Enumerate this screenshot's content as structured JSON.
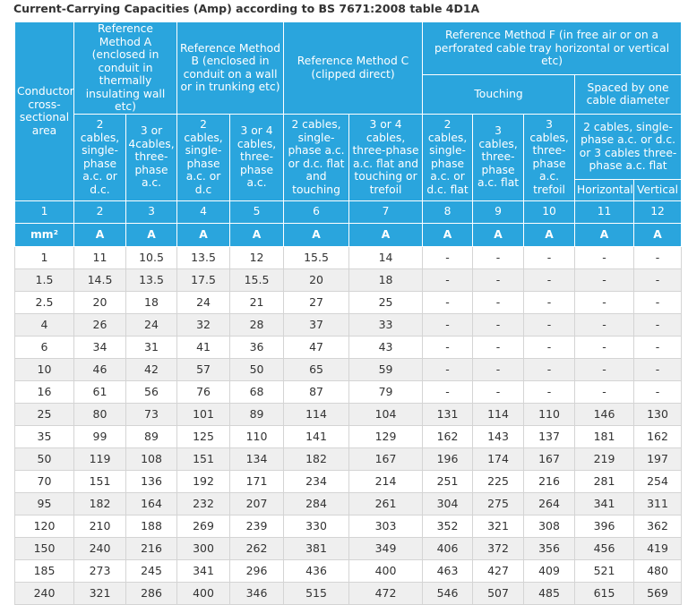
{
  "title": "Current-Carrying Capacities (Amp) according to BS 7671:2008 table 4D1A",
  "header": {
    "conductor": "Conductor cross-sectional area",
    "method_a": "Reference Method A (enclosed in conduit in thermally insulating wall etc)",
    "method_b": "Reference Method B (enclosed in conduit on a wall or in trunking etc)",
    "method_c": "Reference Method C (clipped direct)",
    "method_f": "Reference Method F (in free air or on a perforated cable tray horizontal or vertical etc)",
    "touching": "Touching",
    "spaced": "Spaced by one cable diameter",
    "sub": [
      "2 cables, single-phase a.c. or d.c.",
      "3 or 4cables, three-phase a.c.",
      "2 cables, single-phase a.c. or d.c",
      "3 or 4 cables, three-phase a.c.",
      "2 cables, single-phase a.c. or d.c. flat and touching",
      "3 or 4 cables, three-phase a.c. flat and touching or trefoil",
      "2 cables, single-phase a.c. or d.c. flat",
      "3 cables, three-phase a.c. flat",
      "3 cables, three-phase a.c. trefoil"
    ],
    "spaced_sub": "2 cables, single-phase a.c. or d.c. or 3 cables three-phase a.c. flat",
    "horizontal": "Horizontal",
    "vertical": "Vertical"
  },
  "column_numbers": [
    1,
    2,
    3,
    4,
    5,
    6,
    7,
    8,
    9,
    10,
    11,
    12
  ],
  "units": [
    "mm²",
    "A",
    "A",
    "A",
    "A",
    "A",
    "A",
    "A",
    "A",
    "A",
    "A",
    "A"
  ],
  "rows": [
    [
      1,
      11,
      10.5,
      13.5,
      12,
      15.5,
      14,
      "-",
      "-",
      "-",
      "-",
      "-"
    ],
    [
      1.5,
      14.5,
      13.5,
      17.5,
      15.5,
      20,
      18,
      "-",
      "-",
      "-",
      "-",
      "-"
    ],
    [
      2.5,
      20,
      18,
      24,
      21,
      27,
      25,
      "-",
      "-",
      "-",
      "-",
      "-"
    ],
    [
      4,
      26,
      24,
      32,
      28,
      37,
      33,
      "-",
      "-",
      "-",
      "-",
      "-"
    ],
    [
      6,
      34,
      31,
      41,
      36,
      47,
      43,
      "-",
      "-",
      "-",
      "-",
      "-"
    ],
    [
      10,
      46,
      42,
      57,
      50,
      65,
      59,
      "-",
      "-",
      "-",
      "-",
      "-"
    ],
    [
      16,
      61,
      56,
      76,
      68,
      87,
      79,
      "-",
      "-",
      "-",
      "-",
      "-"
    ],
    [
      25,
      80,
      73,
      101,
      89,
      114,
      104,
      131,
      114,
      110,
      146,
      130
    ],
    [
      35,
      99,
      89,
      125,
      110,
      141,
      129,
      162,
      143,
      137,
      181,
      162
    ],
    [
      50,
      119,
      108,
      151,
      134,
      182,
      167,
      196,
      174,
      167,
      219,
      197
    ],
    [
      70,
      151,
      136,
      192,
      171,
      234,
      214,
      251,
      225,
      216,
      281,
      254
    ],
    [
      95,
      182,
      164,
      232,
      207,
      284,
      261,
      304,
      275,
      264,
      341,
      311
    ],
    [
      120,
      210,
      188,
      269,
      239,
      330,
      303,
      352,
      321,
      308,
      396,
      362
    ],
    [
      150,
      240,
      216,
      300,
      262,
      381,
      349,
      406,
      372,
      356,
      456,
      419
    ],
    [
      185,
      273,
      245,
      341,
      296,
      436,
      400,
      463,
      427,
      409,
      521,
      480
    ],
    [
      240,
      321,
      286,
      400,
      346,
      515,
      472,
      546,
      507,
      485,
      615,
      569
    ]
  ]
}
